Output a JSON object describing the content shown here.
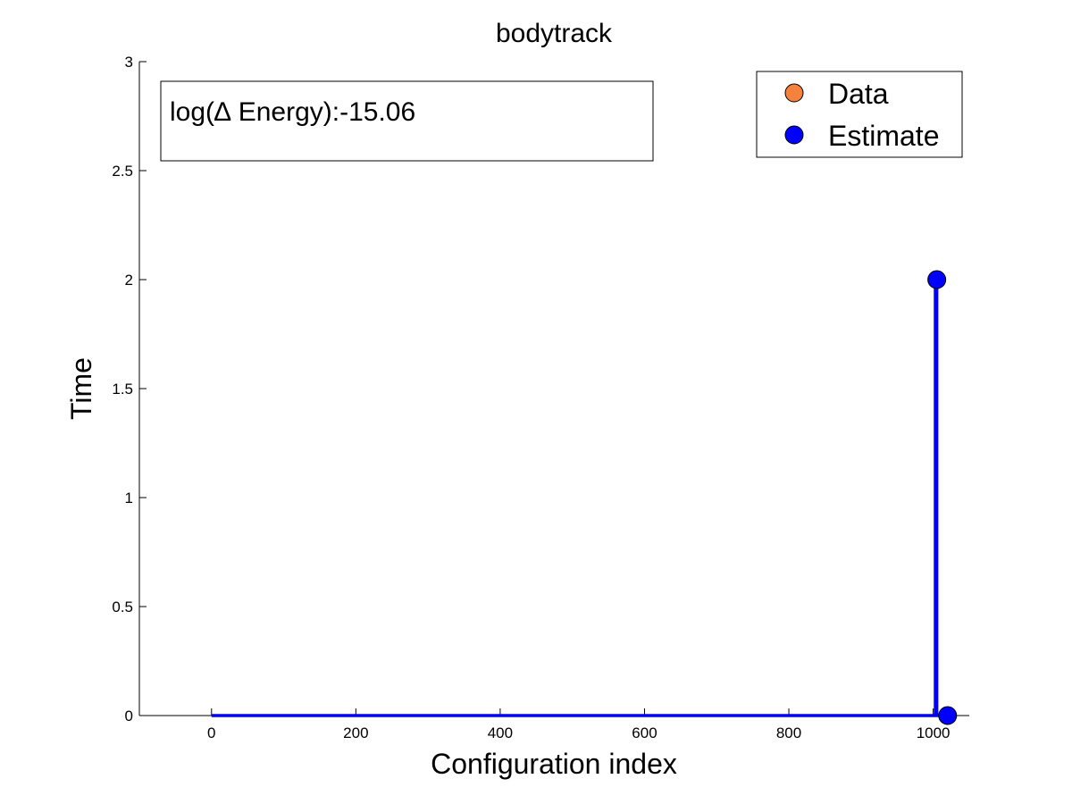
{
  "chart_data": {
    "type": "line",
    "title": "bodytrack",
    "xlabel": "Configuration index",
    "ylabel": "Time",
    "xlim": [
      -100,
      1050
    ],
    "ylim": [
      0,
      3
    ],
    "xticks": [
      0,
      200,
      400,
      600,
      800,
      1000
    ],
    "yticks": [
      0,
      0.5,
      1,
      1.5,
      2,
      2.5,
      3
    ],
    "xtick_labels": [
      "0",
      "200",
      "400",
      "600",
      "800",
      "1000"
    ],
    "ytick_labels": [
      "0",
      "0.5",
      "1",
      "1.5",
      "2",
      "2.5",
      "3"
    ],
    "grid": false,
    "legend_position": "top-right",
    "annotation": "log(∆ Energy):-15.06",
    "series": [
      {
        "name": "Data",
        "color": "#f4823c",
        "marker": "circle",
        "points": []
      },
      {
        "name": "Estimate",
        "color": "#0000ff",
        "marker": "circle",
        "line": [
          [
            0,
            0
          ],
          [
            1003,
            0
          ],
          [
            1003,
            2
          ],
          [
            1005,
            2
          ],
          [
            1005,
            0
          ],
          [
            1020,
            0
          ]
        ],
        "points": [
          [
            1005,
            2
          ],
          [
            1020,
            0
          ]
        ]
      }
    ]
  }
}
